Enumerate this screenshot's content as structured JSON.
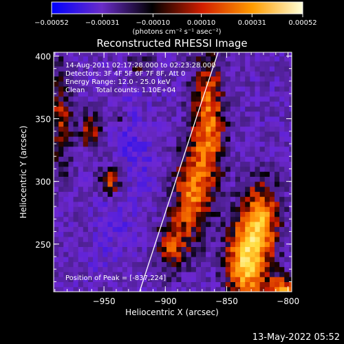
{
  "chart_data": {
    "type": "heatmap",
    "title": "Reconstructed RHESSI Image",
    "xlabel": "Heliocentric X (arcsec)",
    "ylabel": "Heliocentric Y (arcsec)",
    "xlim": [
      -991,
      -797
    ],
    "ylim": [
      212,
      403
    ],
    "x_ticks": [
      -950,
      -900,
      -850,
      -800
    ],
    "x_tick_labels": [
      "−950",
      "−900",
      "−850",
      "−800"
    ],
    "y_ticks": [
      250,
      300,
      350,
      400
    ],
    "y_tick_labels": [
      "250",
      "300",
      "350",
      "400"
    ],
    "colorbar": {
      "min": -0.00052,
      "max": 0.00052,
      "ticks": [
        -0.00052,
        -0.00031,
        -0.0001,
        0.0001,
        0.00031,
        0.00052
      ],
      "tick_labels": [
        "−0.00052",
        "−0.00031",
        "−0.00010",
        "0.00010",
        "0.00031",
        "0.00052"
      ],
      "units_label": "(photons cm⁻² s⁻¹ asec⁻²)",
      "colors": [
        "#0000ff",
        "#6a2cc8",
        "#000000",
        "#d21e00",
        "#ff9c00",
        "#ffffd8"
      ]
    },
    "annotations": [
      "14-Aug-2011 02:17:28.000 to 02:23:28.000",
      "Detectors: 3F 4F 5F 6F 7F 8F, Att 0",
      "Energy Range: 12.0 - 25.0 keV",
      "Clean     Total counts: 1.10E+04"
    ],
    "peak_label": "Position of Peak = [-837,224]",
    "peak": [
      -837,
      224
    ],
    "limb_points": [
      [
        -921,
        212
      ],
      [
        -905,
        260
      ],
      [
        -890,
        305
      ],
      [
        -875,
        350
      ],
      [
        -857,
        403
      ]
    ],
    "bright_regions": [
      {
        "x": -835,
        "y": 235,
        "sx": 10,
        "sy": 22,
        "amp": 0.00052
      },
      {
        "x": -822,
        "y": 268,
        "sx": 10,
        "sy": 22,
        "amp": 0.00042
      },
      {
        "x": -865,
        "y": 345,
        "sx": 9,
        "sy": 38,
        "amp": 0.00038
      },
      {
        "x": -880,
        "y": 290,
        "sx": 9,
        "sy": 25,
        "amp": 0.00034
      },
      {
        "x": -895,
        "y": 250,
        "sx": 8,
        "sy": 15,
        "amp": 0.00028
      },
      {
        "x": -945,
        "y": 300,
        "sx": 6,
        "sy": 8,
        "amp": 0.0003
      },
      {
        "x": -960,
        "y": 340,
        "sx": 6,
        "sy": 10,
        "amp": 0.00026
      },
      {
        "x": -985,
        "y": 350,
        "sx": 6,
        "sy": 30,
        "amp": 0.00022
      },
      {
        "x": -935,
        "y": 350,
        "sx": 5,
        "sy": 6,
        "amp": 0.00016
      },
      {
        "x": -920,
        "y": 395,
        "sx": 8,
        "sy": 8,
        "amp": 0.00014
      },
      {
        "x": -805,
        "y": 210,
        "sx": 10,
        "sy": 10,
        "amp": 0.00045
      }
    ],
    "dark_regions": [
      {
        "x": -930,
        "y": 340,
        "sx": 10,
        "sy": 20,
        "amp": -0.00012
      },
      {
        "x": -940,
        "y": 270,
        "sx": 10,
        "sy": 18,
        "amp": -0.0001
      },
      {
        "x": -915,
        "y": 310,
        "sx": 8,
        "sy": 15,
        "amp": -8e-05
      },
      {
        "x": -955,
        "y": 240,
        "sx": 8,
        "sy": 10,
        "amp": -6e-05
      }
    ]
  },
  "footer": {
    "timestamp": "13-May-2022 05:52"
  }
}
